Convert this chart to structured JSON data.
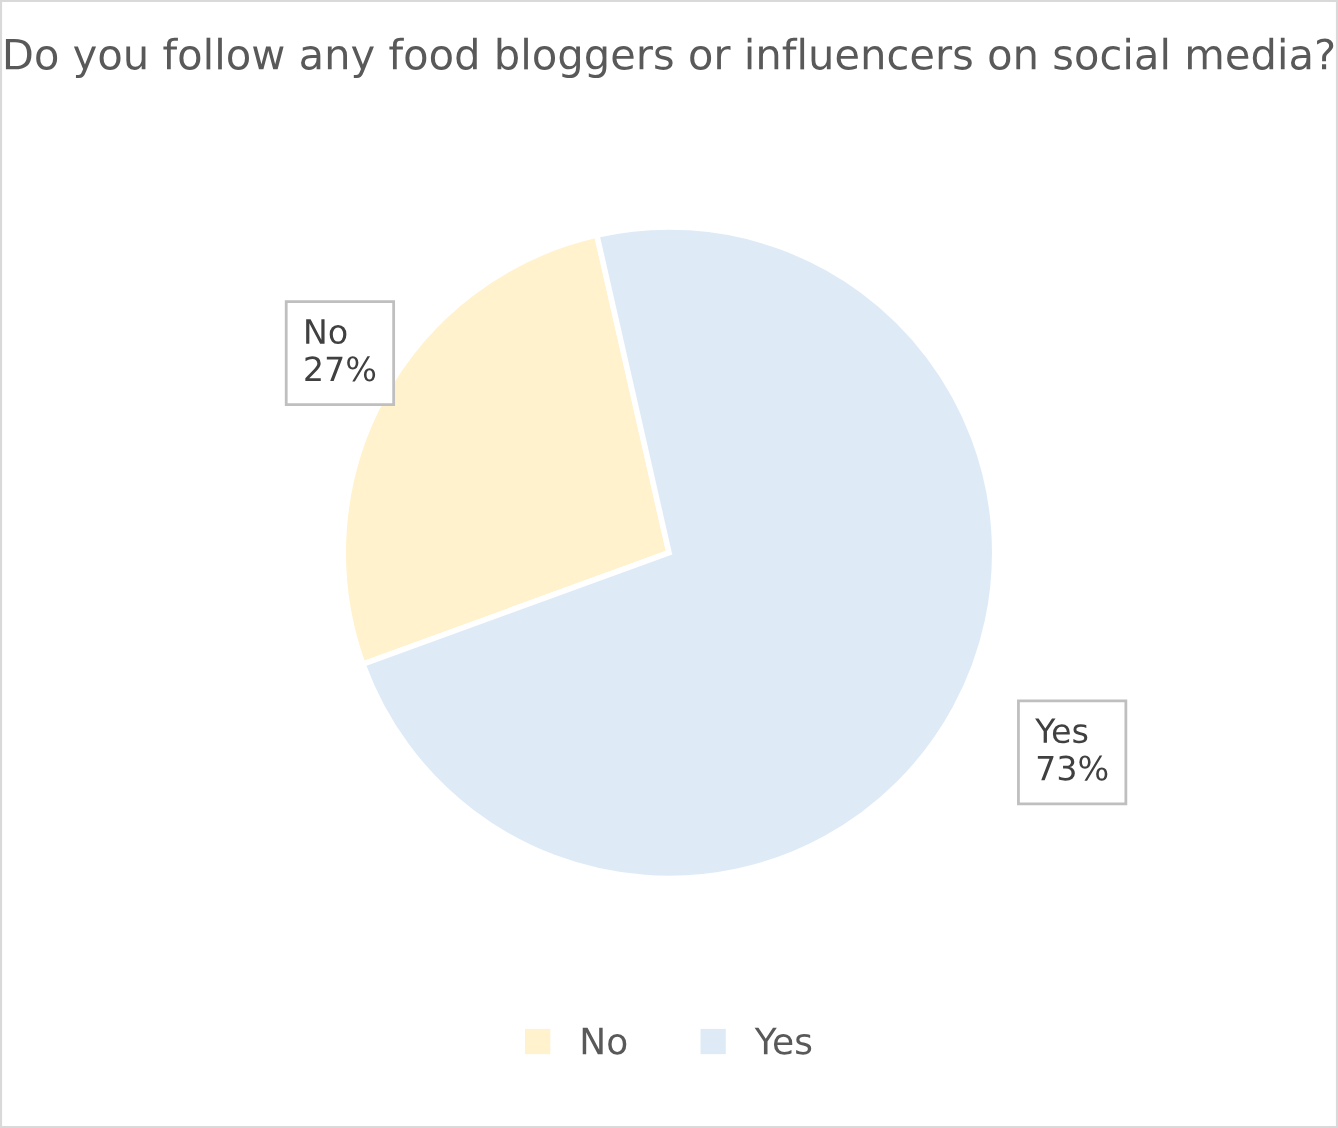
{
  "chart_data": {
    "type": "pie",
    "title": "Do you follow any food bloggers or influencers on social media?",
    "categories": [
      "No",
      "Yes"
    ],
    "values": [
      27,
      73
    ],
    "value_labels": [
      "27%",
      "73%"
    ],
    "colors": [
      "#fff2cc",
      "#deebf7"
    ],
    "legend": "bottom"
  }
}
